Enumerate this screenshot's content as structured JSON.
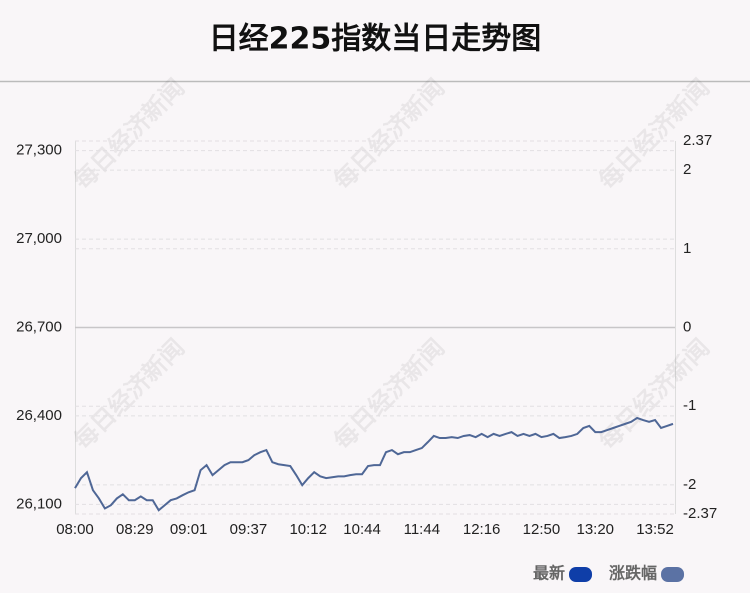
{
  "chart_data": {
    "type": "line",
    "title": "日经225指数当日走势图",
    "watermark": "每日经济新闻",
    "series": [
      {
        "name": "最新",
        "color": "#0f3ea8",
        "line_color": "#4f6796",
        "values": [
          26155,
          26189,
          26209,
          26148,
          26120,
          26086,
          26097,
          26120,
          26134,
          26114,
          26114,
          26127,
          26114,
          26114,
          26080,
          26097,
          26114,
          26120,
          26131,
          26141,
          26148,
          26216,
          26233,
          26199,
          26216,
          26233,
          26243,
          26243,
          26243,
          26250,
          26267,
          26277,
          26284,
          26243,
          26236,
          26233,
          26230,
          26199,
          26165,
          26189,
          26209,
          26195,
          26189,
          26192,
          26195,
          26195,
          26199,
          26202,
          26202,
          26230,
          26233,
          26233,
          26277,
          26284,
          26270,
          26277,
          26277,
          26284,
          26291,
          26311,
          26332,
          26325,
          26325,
          26328,
          26325,
          26332,
          26335,
          26328,
          26339,
          26328,
          26339,
          26332,
          26339,
          26345,
          26332,
          26339,
          26332,
          26339,
          26328,
          26332,
          26339,
          26325,
          26328,
          26332,
          26339,
          26359,
          26366,
          26345,
          26345,
          26352,
          26359,
          26366,
          26373,
          26380,
          26393,
          26386,
          26380,
          26386,
          26359,
          26366,
          26373
        ]
      },
      {
        "name": "涨跌幅",
        "color": "#5b72a4",
        "axis": "y2",
        "values": []
      }
    ],
    "xlim": [
      0,
      100
    ],
    "xticks": [
      {
        "value": 0,
        "label": "08:00"
      },
      {
        "value": 10,
        "label": "08:29"
      },
      {
        "value": 19,
        "label": "09:01"
      },
      {
        "value": 29,
        "label": "09:37"
      },
      {
        "value": 39,
        "label": "10:12"
      },
      {
        "value": 48,
        "label": "10:44"
      },
      {
        "value": 58,
        "label": "11:44"
      },
      {
        "value": 68,
        "label": "12:16"
      },
      {
        "value": 78,
        "label": "12:50"
      },
      {
        "value": 87,
        "label": "13:20"
      },
      {
        "value": 97,
        "label": "13:52"
      }
    ],
    "ylim": [
      26067.2,
      27332.8
    ],
    "yticks": [
      {
        "value": 26100,
        "label": "26,100"
      },
      {
        "value": 26400,
        "label": "26,400"
      },
      {
        "value": 26700,
        "label": "26,700"
      },
      {
        "value": 27000,
        "label": "27,000"
      },
      {
        "value": 27300,
        "label": "27,300"
      }
    ],
    "y2lim": [
      -2.37,
      2.37
    ],
    "y2ticks": [
      -2.37,
      -2,
      -1,
      0,
      1,
      2,
      2.37
    ],
    "grid": true
  }
}
